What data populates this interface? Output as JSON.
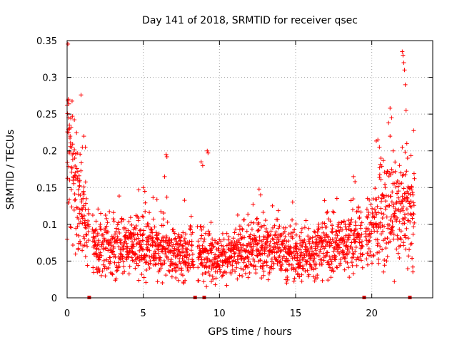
{
  "chart_data": {
    "type": "scatter",
    "title": "Day 141 of 2018, SRMTID for receiver qsec",
    "xlabel": "GPS time / hours",
    "ylabel": "SRMTID / TECUs",
    "xlim": [
      0,
      24
    ],
    "ylim": [
      0,
      0.35
    ],
    "grid": true,
    "marker": "+",
    "color": "#ff0000",
    "x_ticks": [
      {
        "value": 0,
        "label": "0"
      },
      {
        "value": 5,
        "label": "5"
      },
      {
        "value": 10,
        "label": "10"
      },
      {
        "value": 15,
        "label": "15"
      },
      {
        "value": 20,
        "label": "20"
      }
    ],
    "y_ticks": [
      {
        "value": 0,
        "label": "0"
      },
      {
        "value": 0.05,
        "label": "0.05"
      },
      {
        "value": 0.1,
        "label": "0.1"
      },
      {
        "value": 0.15,
        "label": "0.15"
      },
      {
        "value": 0.2,
        "label": "0.2"
      },
      {
        "value": 0.25,
        "label": "0.25"
      },
      {
        "value": 0.3,
        "label": "0.3"
      },
      {
        "value": 0.35,
        "label": "0.35"
      }
    ],
    "zero_markers": [
      1.45,
      8.4,
      9.0,
      19.5,
      22.5
    ],
    "trend": [
      [
        0.0,
        0.18
      ],
      [
        0.5,
        0.15
      ],
      [
        1.0,
        0.11
      ],
      [
        1.5,
        0.085
      ],
      [
        2.0,
        0.07
      ],
      [
        3.0,
        0.068
      ],
      [
        4.0,
        0.068
      ],
      [
        5.0,
        0.07
      ],
      [
        6.0,
        0.065
      ],
      [
        7.0,
        0.062
      ],
      [
        8.0,
        0.06
      ],
      [
        9.0,
        0.06
      ],
      [
        9.5,
        0.058
      ],
      [
        10.0,
        0.052
      ],
      [
        11.0,
        0.06
      ],
      [
        12.0,
        0.068
      ],
      [
        13.0,
        0.07
      ],
      [
        14.0,
        0.062
      ],
      [
        15.0,
        0.06
      ],
      [
        16.0,
        0.062
      ],
      [
        17.0,
        0.07
      ],
      [
        18.0,
        0.074
      ],
      [
        19.0,
        0.08
      ],
      [
        19.5,
        0.075
      ],
      [
        20.0,
        0.09
      ],
      [
        20.5,
        0.11
      ],
      [
        21.0,
        0.12
      ],
      [
        21.5,
        0.11
      ],
      [
        22.0,
        0.12
      ],
      [
        22.5,
        0.11
      ],
      [
        22.8,
        0.1
      ]
    ],
    "spikes": [
      [
        0.0,
        0.262
      ],
      [
        0.05,
        0.268
      ],
      [
        0.1,
        0.245
      ],
      [
        0.15,
        0.23
      ],
      [
        0.2,
        0.22
      ],
      [
        0.3,
        0.205
      ],
      [
        0.5,
        0.19
      ],
      [
        0.7,
        0.172
      ],
      [
        1.0,
        0.205
      ],
      [
        1.1,
        0.22
      ],
      [
        1.2,
        0.205
      ],
      [
        5.0,
        0.15
      ],
      [
        5.1,
        0.145
      ],
      [
        6.5,
        0.195
      ],
      [
        6.55,
        0.192
      ],
      [
        6.4,
        0.165
      ],
      [
        8.8,
        0.185
      ],
      [
        8.9,
        0.18
      ],
      [
        9.2,
        0.2
      ],
      [
        9.25,
        0.197
      ],
      [
        12.6,
        0.148
      ],
      [
        12.7,
        0.14
      ],
      [
        18.8,
        0.165
      ],
      [
        18.9,
        0.158
      ],
      [
        20.4,
        0.215
      ],
      [
        20.5,
        0.205
      ],
      [
        20.6,
        0.19
      ],
      [
        21.1,
        0.238
      ],
      [
        21.2,
        0.258
      ],
      [
        21.3,
        0.245
      ],
      [
        21.4,
        0.2
      ],
      [
        21.2,
        0.22
      ],
      [
        21.9,
        0.17
      ],
      [
        22.0,
        0.335
      ],
      [
        22.05,
        0.33
      ],
      [
        22.1,
        0.32
      ],
      [
        22.15,
        0.31
      ],
      [
        22.2,
        0.29
      ],
      [
        22.25,
        0.255
      ],
      [
        22.3,
        0.21
      ],
      [
        22.35,
        0.19
      ],
      [
        22.1,
        0.168
      ],
      [
        22.6,
        0.148
      ],
      [
        22.7,
        0.14
      ]
    ]
  }
}
